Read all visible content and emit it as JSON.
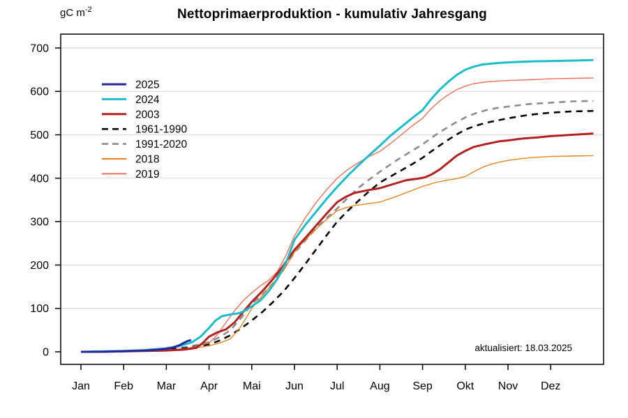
{
  "chart_data": {
    "type": "line",
    "title": "Nettoprimaerproduktion - kumulativ Jahresgang",
    "ylabel_base": "gC m",
    "ylabel_exponent": "-2",
    "annotation": "aktualisiert: 18.03.2025",
    "x_tick_labels": [
      "Jan",
      "Feb",
      "Mar",
      "Apr",
      "Mai",
      "Jun",
      "Jul",
      "Aug",
      "Sep",
      "Okt",
      "Nov",
      "Dez"
    ],
    "y_ticks": [
      0,
      100,
      200,
      300,
      400,
      500,
      600,
      700
    ],
    "ylim": [
      0,
      700
    ],
    "xlim_months": [
      0,
      12
    ],
    "grid": "horizontal",
    "gridline_color": "#d9d9d9",
    "axis_color": "#000000",
    "legend_position": "upper-left-inside",
    "series": [
      {
        "name": "2025",
        "color": "#26269E",
        "style": "solid",
        "width": 3,
        "points": [
          [
            0,
            0
          ],
          [
            0.4,
            0
          ],
          [
            0.8,
            1
          ],
          [
            1.2,
            2
          ],
          [
            1.5,
            3
          ],
          [
            1.8,
            5
          ],
          [
            2.0,
            7
          ],
          [
            2.15,
            10
          ],
          [
            2.3,
            15
          ],
          [
            2.4,
            20
          ],
          [
            2.5,
            25
          ],
          [
            2.58,
            27
          ]
        ]
      },
      {
        "name": "2024",
        "color": "#1CBDC9",
        "style": "solid",
        "width": 3,
        "points": [
          [
            0,
            0
          ],
          [
            0.5,
            1
          ],
          [
            1,
            2
          ],
          [
            1.5,
            4
          ],
          [
            2,
            8
          ],
          [
            2.3,
            13
          ],
          [
            2.6,
            22
          ],
          [
            2.8,
            35
          ],
          [
            3,
            55
          ],
          [
            3.15,
            72
          ],
          [
            3.3,
            82
          ],
          [
            3.5,
            86
          ],
          [
            3.7,
            89
          ],
          [
            3.85,
            95
          ],
          [
            4,
            105
          ],
          [
            4.2,
            118
          ],
          [
            4.4,
            140
          ],
          [
            4.6,
            168
          ],
          [
            4.8,
            205
          ],
          [
            5,
            258
          ],
          [
            5.25,
            292
          ],
          [
            5.5,
            322
          ],
          [
            5.75,
            352
          ],
          [
            6,
            380
          ],
          [
            6.25,
            406
          ],
          [
            6.5,
            430
          ],
          [
            6.75,
            453
          ],
          [
            7,
            475
          ],
          [
            7.25,
            498
          ],
          [
            7.5,
            518
          ],
          [
            7.75,
            538
          ],
          [
            8,
            557
          ],
          [
            8.2,
            582
          ],
          [
            8.4,
            604
          ],
          [
            8.6,
            622
          ],
          [
            8.8,
            638
          ],
          [
            9,
            650
          ],
          [
            9.2,
            657
          ],
          [
            9.4,
            662
          ],
          [
            9.7,
            665
          ],
          [
            10,
            667
          ],
          [
            10.5,
            669
          ],
          [
            11,
            670
          ],
          [
            11.5,
            671
          ],
          [
            12,
            672
          ]
        ]
      },
      {
        "name": "2003",
        "color": "#B22222",
        "style": "solid",
        "width": 3,
        "points": [
          [
            0,
            0
          ],
          [
            0.5,
            0
          ],
          [
            1,
            1
          ],
          [
            1.5,
            2
          ],
          [
            2,
            3
          ],
          [
            2.4,
            5
          ],
          [
            2.7,
            9
          ],
          [
            2.85,
            20
          ],
          [
            3,
            35
          ],
          [
            3.2,
            45
          ],
          [
            3.4,
            52
          ],
          [
            3.6,
            68
          ],
          [
            3.8,
            92
          ],
          [
            4,
            115
          ],
          [
            4.25,
            140
          ],
          [
            4.5,
            168
          ],
          [
            4.75,
            200
          ],
          [
            5,
            235
          ],
          [
            5.25,
            262
          ],
          [
            5.5,
            290
          ],
          [
            5.75,
            318
          ],
          [
            6,
            345
          ],
          [
            6.2,
            357
          ],
          [
            6.4,
            366
          ],
          [
            6.7,
            372
          ],
          [
            7,
            377
          ],
          [
            7.3,
            386
          ],
          [
            7.6,
            395
          ],
          [
            7.9,
            399
          ],
          [
            8.05,
            402
          ],
          [
            8.2,
            408
          ],
          [
            8.4,
            420
          ],
          [
            8.6,
            436
          ],
          [
            8.8,
            452
          ],
          [
            9,
            463
          ],
          [
            9.2,
            472
          ],
          [
            9.5,
            479
          ],
          [
            9.8,
            485
          ],
          [
            10,
            487
          ],
          [
            10.3,
            491
          ],
          [
            10.7,
            494
          ],
          [
            11,
            497
          ],
          [
            11.5,
            500
          ],
          [
            12,
            503
          ]
        ]
      },
      {
        "name": "1961-1990",
        "color": "#000000",
        "style": "dashed",
        "width": 2.6,
        "points": [
          [
            0,
            0
          ],
          [
            0.5,
            1
          ],
          [
            1,
            2
          ],
          [
            1.5,
            3
          ],
          [
            2,
            5
          ],
          [
            2.5,
            9
          ],
          [
            3,
            17
          ],
          [
            3.25,
            26
          ],
          [
            3.5,
            38
          ],
          [
            3.75,
            54
          ],
          [
            4,
            72
          ],
          [
            4.25,
            92
          ],
          [
            4.5,
            115
          ],
          [
            4.75,
            140
          ],
          [
            5,
            170
          ],
          [
            5.25,
            202
          ],
          [
            5.5,
            235
          ],
          [
            5.75,
            268
          ],
          [
            6,
            300
          ],
          [
            6.25,
            325
          ],
          [
            6.5,
            348
          ],
          [
            6.75,
            370
          ],
          [
            7,
            390
          ],
          [
            7.25,
            404
          ],
          [
            7.5,
            418
          ],
          [
            7.75,
            432
          ],
          [
            8,
            447
          ],
          [
            8.25,
            465
          ],
          [
            8.5,
            482
          ],
          [
            8.75,
            498
          ],
          [
            9,
            512
          ],
          [
            9.25,
            521
          ],
          [
            9.5,
            528
          ],
          [
            9.75,
            533
          ],
          [
            10,
            538
          ],
          [
            10.5,
            546
          ],
          [
            11,
            551
          ],
          [
            11.5,
            554
          ],
          [
            12,
            555
          ]
        ]
      },
      {
        "name": "1991-2020",
        "color": "#8C8C8C",
        "style": "dashed",
        "width": 2.6,
        "points": [
          [
            0,
            0
          ],
          [
            0.5,
            1
          ],
          [
            1,
            2
          ],
          [
            1.5,
            4
          ],
          [
            2,
            6
          ],
          [
            2.5,
            11
          ],
          [
            3,
            22
          ],
          [
            3.25,
            34
          ],
          [
            3.5,
            50
          ],
          [
            3.75,
            78
          ],
          [
            4,
            110
          ],
          [
            4.25,
            132
          ],
          [
            4.5,
            158
          ],
          [
            4.75,
            195
          ],
          [
            5,
            228
          ],
          [
            5.25,
            256
          ],
          [
            5.5,
            284
          ],
          [
            5.75,
            308
          ],
          [
            6,
            330
          ],
          [
            6.25,
            355
          ],
          [
            6.5,
            378
          ],
          [
            6.75,
            397
          ],
          [
            7,
            415
          ],
          [
            7.25,
            432
          ],
          [
            7.5,
            448
          ],
          [
            7.75,
            463
          ],
          [
            8,
            478
          ],
          [
            8.25,
            496
          ],
          [
            8.5,
            512
          ],
          [
            8.75,
            527
          ],
          [
            9,
            540
          ],
          [
            9.25,
            550
          ],
          [
            9.5,
            557
          ],
          [
            9.75,
            562
          ],
          [
            10,
            565
          ],
          [
            10.5,
            571
          ],
          [
            11,
            574
          ],
          [
            11.5,
            577
          ],
          [
            12,
            578
          ]
        ]
      },
      {
        "name": "2018",
        "color": "#E8821E",
        "style": "solid",
        "width": 1.4,
        "points": [
          [
            0,
            0
          ],
          [
            0.5,
            0
          ],
          [
            1,
            1
          ],
          [
            1.5,
            2
          ],
          [
            2,
            3
          ],
          [
            2.5,
            6
          ],
          [
            3,
            14
          ],
          [
            3.3,
            22
          ],
          [
            3.5,
            30
          ],
          [
            3.7,
            52
          ],
          [
            3.85,
            75
          ],
          [
            4,
            100
          ],
          [
            4.25,
            130
          ],
          [
            4.5,
            158
          ],
          [
            4.75,
            188
          ],
          [
            5,
            230
          ],
          [
            5.25,
            258
          ],
          [
            5.5,
            282
          ],
          [
            5.75,
            305
          ],
          [
            6,
            325
          ],
          [
            6.2,
            332
          ],
          [
            6.4,
            337
          ],
          [
            6.7,
            341
          ],
          [
            7,
            345
          ],
          [
            7.3,
            355
          ],
          [
            7.6,
            366
          ],
          [
            8,
            381
          ],
          [
            8.3,
            390
          ],
          [
            8.6,
            396
          ],
          [
            8.8,
            399
          ],
          [
            9,
            404
          ],
          [
            9.2,
            415
          ],
          [
            9.4,
            425
          ],
          [
            9.6,
            432
          ],
          [
            9.8,
            437
          ],
          [
            10,
            441
          ],
          [
            10.3,
            445
          ],
          [
            10.6,
            448
          ],
          [
            11,
            450
          ],
          [
            11.5,
            451
          ],
          [
            12,
            452
          ]
        ]
      },
      {
        "name": "2019",
        "color": "#E8705A",
        "style": "solid",
        "width": 1.4,
        "points": [
          [
            0,
            0
          ],
          [
            0.5,
            0
          ],
          [
            1,
            1
          ],
          [
            1.5,
            2
          ],
          [
            2,
            4
          ],
          [
            2.5,
            8
          ],
          [
            3,
            20
          ],
          [
            3.2,
            40
          ],
          [
            3.4,
            68
          ],
          [
            3.6,
            95
          ],
          [
            3.8,
            118
          ],
          [
            4,
            136
          ],
          [
            4.2,
            152
          ],
          [
            4.4,
            165
          ],
          [
            4.6,
            185
          ],
          [
            4.8,
            222
          ],
          [
            5,
            267
          ],
          [
            5.25,
            308
          ],
          [
            5.5,
            343
          ],
          [
            5.75,
            373
          ],
          [
            6,
            400
          ],
          [
            6.25,
            420
          ],
          [
            6.5,
            436
          ],
          [
            6.75,
            450
          ],
          [
            7,
            462
          ],
          [
            7.25,
            480
          ],
          [
            7.5,
            500
          ],
          [
            7.75,
            520
          ],
          [
            8,
            538
          ],
          [
            8.2,
            560
          ],
          [
            8.4,
            578
          ],
          [
            8.6,
            592
          ],
          [
            8.8,
            604
          ],
          [
            9,
            612
          ],
          [
            9.2,
            618
          ],
          [
            9.5,
            622
          ],
          [
            9.8,
            624
          ],
          [
            10,
            625
          ],
          [
            10.5,
            627
          ],
          [
            11,
            629
          ],
          [
            11.5,
            630
          ],
          [
            12,
            631
          ]
        ]
      }
    ]
  }
}
